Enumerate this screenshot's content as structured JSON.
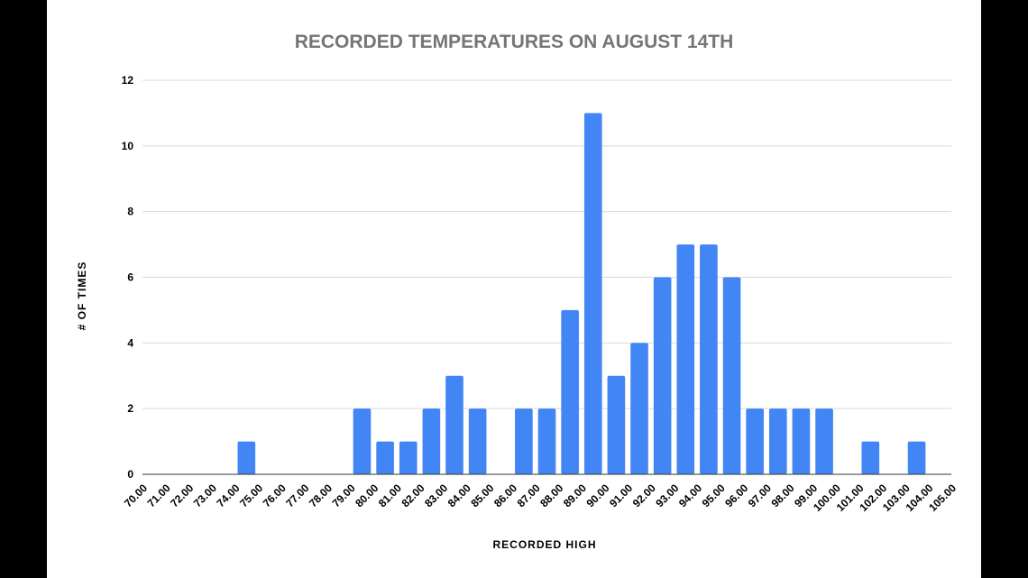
{
  "chart_data": {
    "type": "bar",
    "title": "RECORDED TEMPERATURES ON AUGUST 14TH",
    "xlabel": "RECORDED HIGH",
    "ylabel": "# OF TIMES",
    "x_tick_labels": [
      "70.00",
      "71.00",
      "72.00",
      "73.00",
      "74.00",
      "75.00",
      "76.00",
      "77.00",
      "78.00",
      "79.00",
      "80.00",
      "81.00",
      "82.00",
      "83.00",
      "84.00",
      "85.00",
      "86.00",
      "87.00",
      "88.00",
      "89.00",
      "90.00",
      "91.00",
      "92.00",
      "93.00",
      "94.00",
      "95.00",
      "96.00",
      "97.00",
      "98.00",
      "99.00",
      "100.00",
      "101.00",
      "102.00",
      "103.00",
      "104.00",
      "105.00"
    ],
    "bins": [
      {
        "from": 74,
        "to": 75,
        "count": 1
      },
      {
        "from": 79,
        "to": 80,
        "count": 2
      },
      {
        "from": 80,
        "to": 81,
        "count": 1
      },
      {
        "from": 81,
        "to": 82,
        "count": 1
      },
      {
        "from": 82,
        "to": 83,
        "count": 2
      },
      {
        "from": 83,
        "to": 84,
        "count": 3
      },
      {
        "from": 84,
        "to": 85,
        "count": 2
      },
      {
        "from": 86,
        "to": 87,
        "count": 2
      },
      {
        "from": 87,
        "to": 88,
        "count": 2
      },
      {
        "from": 88,
        "to": 89,
        "count": 5
      },
      {
        "from": 89,
        "to": 90,
        "count": 11
      },
      {
        "from": 90,
        "to": 91,
        "count": 3
      },
      {
        "from": 91,
        "to": 92,
        "count": 4
      },
      {
        "from": 92,
        "to": 93,
        "count": 6
      },
      {
        "from": 93,
        "to": 94,
        "count": 7
      },
      {
        "from": 94,
        "to": 95,
        "count": 7
      },
      {
        "from": 95,
        "to": 96,
        "count": 6
      },
      {
        "from": 96,
        "to": 97,
        "count": 2
      },
      {
        "from": 97,
        "to": 98,
        "count": 2
      },
      {
        "from": 98,
        "to": 99,
        "count": 2
      },
      {
        "from": 99,
        "to": 100,
        "count": 2
      },
      {
        "from": 101,
        "to": 102,
        "count": 1
      },
      {
        "from": 103,
        "to": 104,
        "count": 1
      }
    ],
    "xlim": [
      70,
      105
    ],
    "ylim": [
      0,
      12
    ],
    "y_ticks": [
      0,
      2,
      4,
      6,
      8,
      10,
      12
    ],
    "bar_color": "#4285f4",
    "grid": true,
    "legend": "none"
  }
}
